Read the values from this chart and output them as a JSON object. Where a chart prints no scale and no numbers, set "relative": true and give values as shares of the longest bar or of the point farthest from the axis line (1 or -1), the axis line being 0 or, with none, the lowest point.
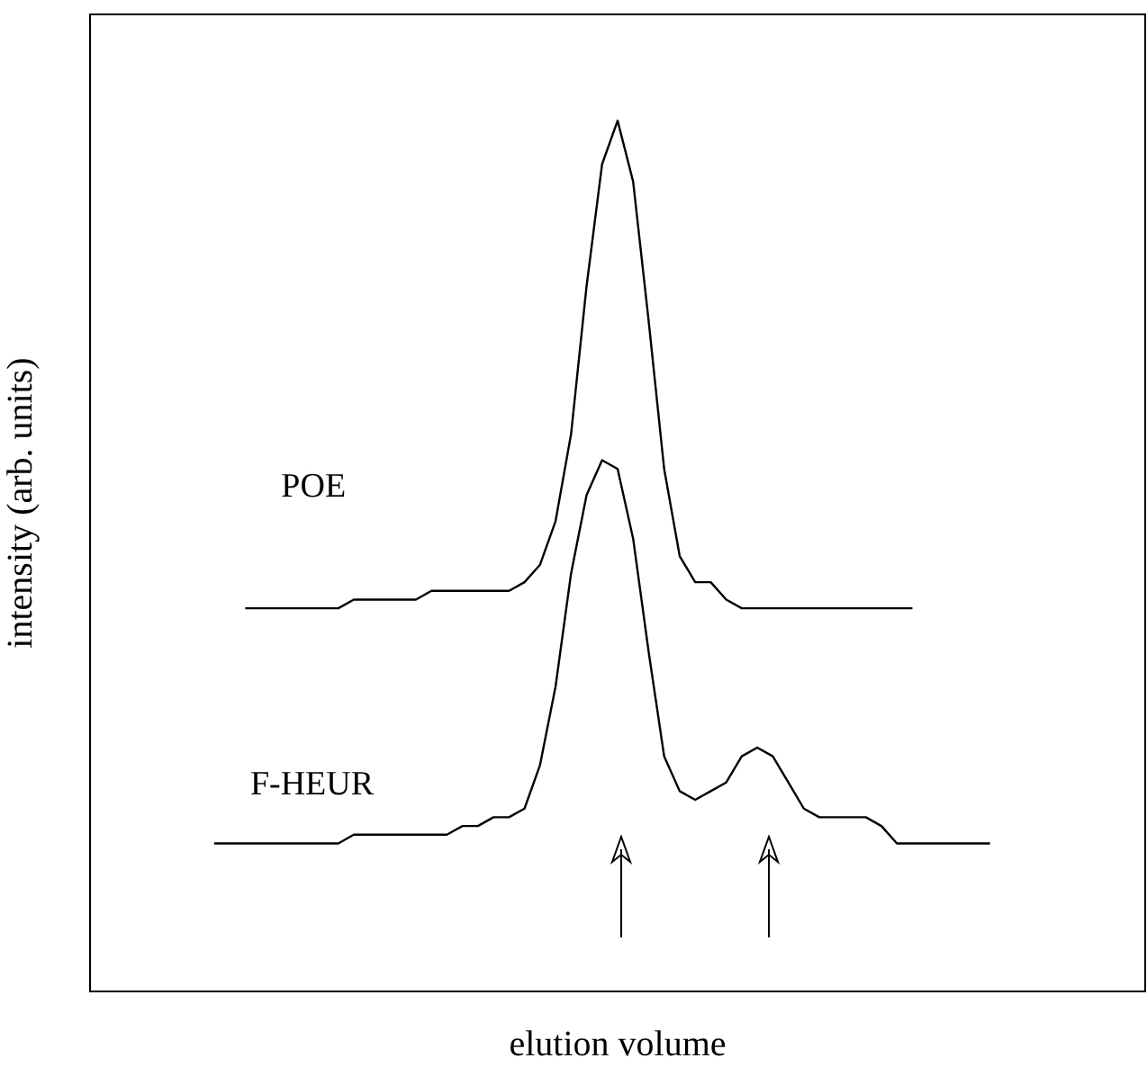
{
  "chart_data": {
    "type": "line",
    "relative": true,
    "xlabel": "elution volume",
    "ylabel": "intensity (arb. units)",
    "legend": false,
    "grid": false,
    "marker": "none",
    "line_style": "solid",
    "categories": [
      null,
      null,
      null,
      null,
      null,
      null,
      null,
      null,
      null,
      null,
      null,
      null,
      null,
      null,
      null,
      null,
      null,
      null,
      null,
      null,
      null,
      null,
      null,
      null,
      null,
      null,
      null,
      null,
      null,
      null,
      null,
      null,
      null,
      null,
      null,
      null,
      null,
      null,
      null,
      null,
      null,
      null,
      null,
      null,
      null,
      null,
      null,
      null,
      null,
      null,
      null,
      null,
      null,
      null,
      null,
      null,
      null,
      null,
      null,
      null,
      null,
      null,
      null,
      null,
      null,
      null,
      null,
      null,
      null
    ],
    "series": [
      {
        "name": "POE",
        "color": "#000000",
        "values": [
          null,
          null,
          null,
          null,
          null,
          null,
          null,
          null,
          null,
          null,
          0.44,
          0.44,
          0.44,
          0.44,
          0.44,
          0.44,
          0.44,
          0.45,
          0.45,
          0.45,
          0.45,
          0.45,
          0.46,
          0.46,
          0.46,
          0.46,
          0.46,
          0.46,
          0.47,
          0.49,
          0.54,
          0.64,
          0.81,
          0.95,
          1,
          0.93,
          0.77,
          0.6,
          0.5,
          0.47,
          0.47,
          0.45,
          0.44,
          0.44,
          0.44,
          0.44,
          0.44,
          0.44,
          0.44,
          0.44,
          0.44,
          0.44,
          0.44,
          0.44,
          null,
          null,
          null,
          null,
          null,
          null,
          null,
          null,
          null,
          null,
          null,
          null,
          null,
          null,
          null
        ]
      },
      {
        "name": "F-HEUR",
        "color": "#000000",
        "values": [
          null,
          null,
          null,
          null,
          null,
          null,
          null,
          null,
          0.17,
          0.17,
          0.17,
          0.17,
          0.17,
          0.17,
          0.17,
          0.17,
          0.17,
          0.18,
          0.18,
          0.18,
          0.18,
          0.18,
          0.18,
          0.18,
          0.19,
          0.19,
          0.2,
          0.2,
          0.21,
          0.26,
          0.35,
          0.48,
          0.57,
          0.61,
          0.6,
          0.52,
          0.39,
          0.27,
          0.23,
          0.22,
          0.23,
          0.24,
          0.27,
          0.28,
          0.27,
          0.24,
          0.21,
          0.2,
          0.2,
          0.2,
          0.2,
          0.19,
          0.17,
          0.17,
          0.17,
          0.17,
          0.17,
          0.17,
          0.17,
          null,
          null,
          null,
          null,
          null,
          null,
          null,
          null,
          null,
          null
        ]
      }
    ]
  }
}
